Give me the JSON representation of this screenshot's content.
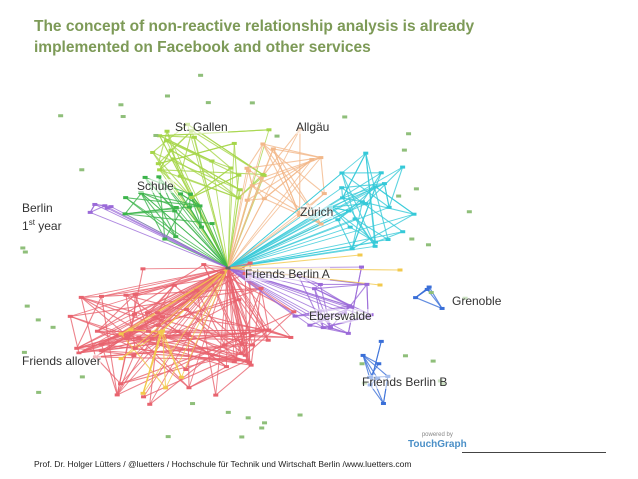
{
  "slide": {
    "title_line1": "The concept of non-reactive relationship analysis is already",
    "title_line2": "implemented on Facebook and other services",
    "footer": "Prof. Dr. Holger Lütters / @luetters  / Hochschule für Technik und Wirtschaft Berlin /www.luetters.com"
  },
  "logo": {
    "powered": "powered by",
    "name": "TouchGraph"
  },
  "clusters": {
    "stgallen": "St. Gallen",
    "allgau": "Allgäu",
    "schule": "Schule",
    "berlin": "Berlin",
    "first_year_num": "1",
    "first_year_sup": "st",
    "first_year_word": " year",
    "zurich": "Zürich",
    "friends_berlin_a": "Friends Berlin A",
    "grenoble": "Grenoble",
    "eberswalde": "Eberswalde",
    "friends_allover": "Friends allover",
    "friends_berlin_b": "Friends Berlin B"
  },
  "colors": {
    "title": "#7d9a57",
    "stgallen": "#a6d64a",
    "schule": "#3cb44b",
    "allgau": "#f2b88a",
    "zurich": "#35c9d8",
    "red": "#e8636e",
    "purple": "#9b6ad8",
    "blue": "#3a6fd8",
    "yellow": "#f2c94c",
    "teal": "#3aa7a3"
  }
}
